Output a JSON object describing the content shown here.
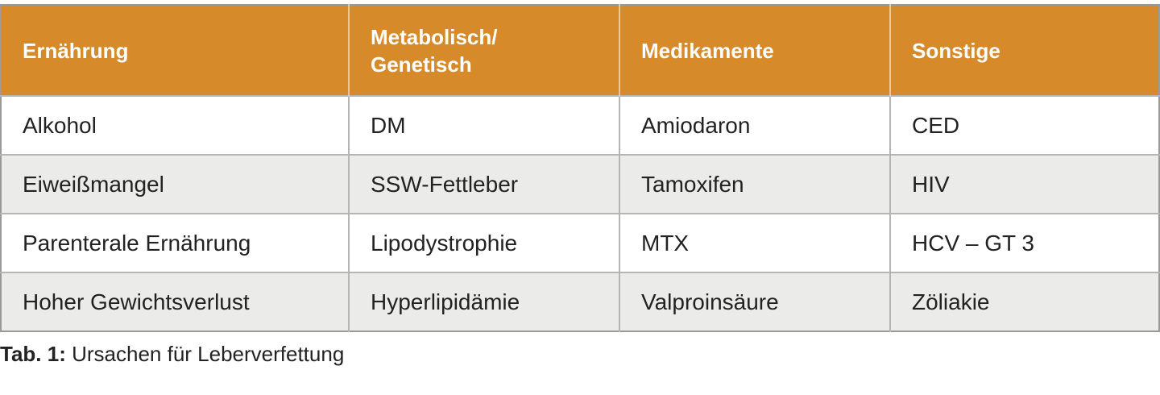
{
  "table": {
    "header": [
      "Ernährung",
      "Metabolisch/\nGenetisch",
      "Medikamente",
      "Sonstige"
    ],
    "rows": [
      [
        "Alkohol",
        "DM",
        "Amiodaron",
        "CED"
      ],
      [
        "Eiweißmangel",
        "SSW-Fettleber",
        "Tamoxifen",
        "HIV"
      ],
      [
        "Parenterale Ernährung",
        "Lipodystrophie",
        "MTX",
        "HCV – GT 3"
      ],
      [
        "Hoher Gewichtsverlust",
        "Hyperlipidämie",
        "Valproinsäure",
        "Zöliakie"
      ]
    ]
  },
  "caption": {
    "label": "Tab. 1:",
    "text": "Ursachen für Leberverfettung"
  }
}
